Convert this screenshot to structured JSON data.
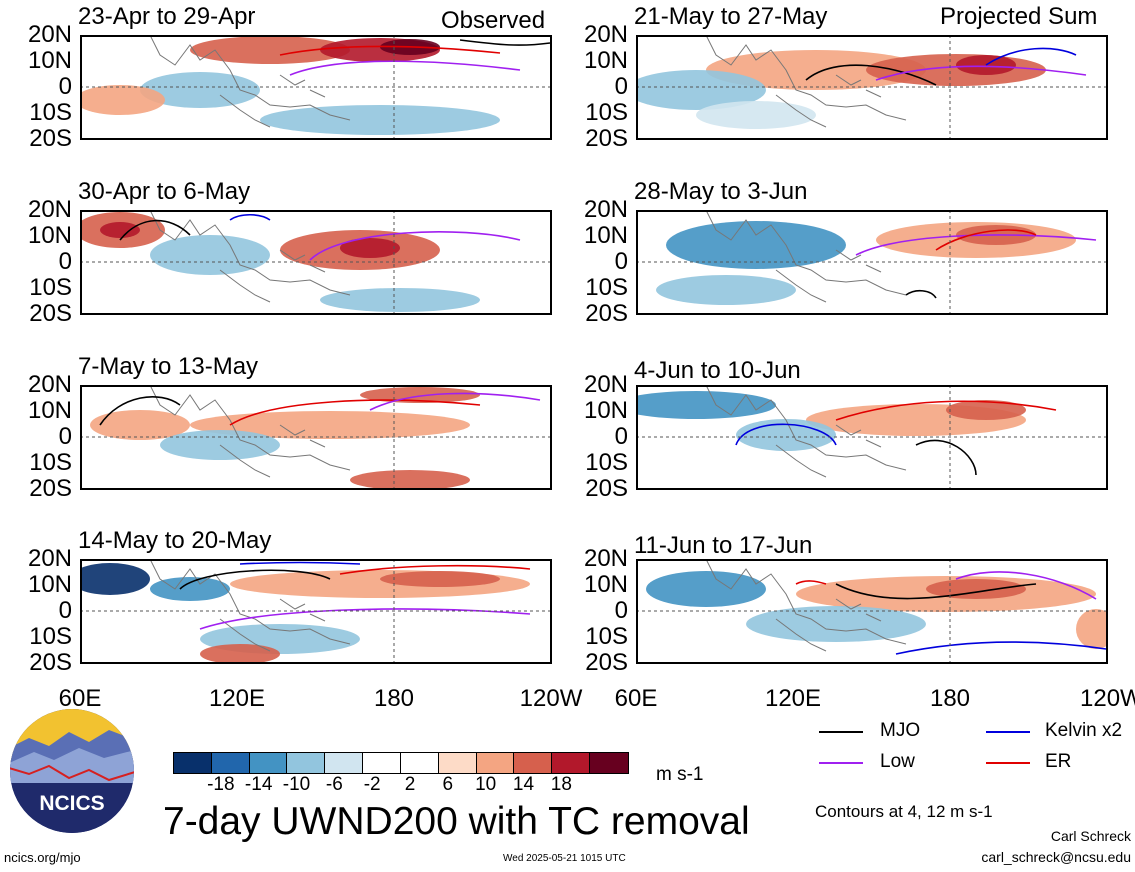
{
  "panels": [
    {
      "title": "23-Apr to 29-Apr",
      "tag": "Observed"
    },
    {
      "title": "21-May to 27-May",
      "tag": "Projected Sum"
    },
    {
      "title": "30-Apr to 6-May",
      "tag": ""
    },
    {
      "title": "28-May to 3-Jun",
      "tag": ""
    },
    {
      "title": "7-May to 13-May",
      "tag": ""
    },
    {
      "title": "4-Jun to 10-Jun",
      "tag": ""
    },
    {
      "title": "14-May to 20-May",
      "tag": ""
    },
    {
      "title": "11-Jun to 17-Jun",
      "tag": ""
    }
  ],
  "lat_labels": [
    "20N",
    "10N",
    "0",
    "10S",
    "20S"
  ],
  "lon_labels_left": [
    "60E",
    "120E",
    "180",
    "120W"
  ],
  "lon_labels_right": [
    "60E",
    "120E",
    "180",
    "120W"
  ],
  "colorbar": {
    "colors": [
      "#08306b",
      "#2166ac",
      "#4393c3",
      "#92c5de",
      "#d1e5f0",
      "#ffffff",
      "#ffffff",
      "#fddbc7",
      "#f4a582",
      "#d6604d",
      "#b2182b",
      "#67001f"
    ],
    "labels": [
      "-18",
      "-14",
      "-10",
      "-6",
      "-2",
      "2",
      "6",
      "10",
      "14",
      "18"
    ],
    "unit": "m s-1"
  },
  "legend": {
    "mjo": {
      "label": "MJO",
      "color": "#000000"
    },
    "kelvin": {
      "label": "Kelvin x2",
      "color": "#0000dd"
    },
    "low": {
      "label": "Low",
      "color": "#a020f0"
    },
    "er": {
      "label": "ER",
      "color": "#e00000"
    },
    "contours_note": "Contours at 4, 12 m s-1"
  },
  "logo": {
    "text": "NCICS"
  },
  "title": "7-day UWND200 with TC removal",
  "author": "Carl Schreck",
  "email": "carl_schreck@ncsu.edu",
  "url": "ncics.org/mjo",
  "timestamp": "Wed 2025-05-21 1015 UTC"
}
